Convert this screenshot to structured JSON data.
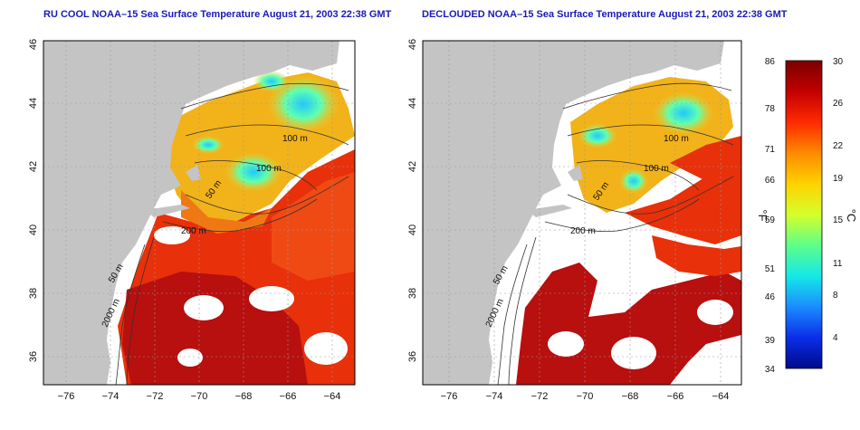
{
  "maps": [
    {
      "title": "RU COOL NOAA–15 Sea Surface Temperature August 21, 2003 22:38 GMT",
      "contour_labels": [
        "100 m",
        "100 m",
        "50 m",
        "200 m",
        "50 m",
        "2000 m"
      ]
    },
    {
      "title": "DECLOUDED NOAA–15 Sea Surface Temperature August 21, 2003 22:38 GMT",
      "contour_labels": [
        "100 m",
        "100 m",
        "50 m",
        "200 m",
        "50 m",
        "2000 m"
      ]
    }
  ],
  "axes": {
    "x_ticks": [
      "−76",
      "−74",
      "−72",
      "−70",
      "−68",
      "−66",
      "−64"
    ],
    "y_ticks": [
      "36",
      "38",
      "40",
      "42",
      "44",
      "46"
    ]
  },
  "colorbar": {
    "fahrenheit_ticks": [
      "86",
      "78",
      "71",
      "66",
      "59",
      "51",
      "46",
      "39",
      "34"
    ],
    "celsius_ticks": [
      "30",
      "26",
      "22",
      "19",
      "15",
      "11",
      "8",
      "4"
    ],
    "fahrenheit_unit": "°F",
    "celsius_unit": "°C",
    "colors": [
      "#7a0000",
      "#c20000",
      "#ff2a00",
      "#ff8a00",
      "#ffd200",
      "#d6ff2a",
      "#5dff8a",
      "#15e8e8",
      "#1a8cff",
      "#0a2ee8",
      "#000a8a"
    ]
  },
  "colors": {
    "land": "#c4c4c4",
    "no_data": "#ffffff",
    "title": "#1a1ab8",
    "grid": "#9a9a9a"
  }
}
